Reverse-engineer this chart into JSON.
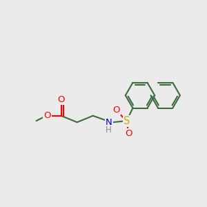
{
  "background_color": "#ebebeb",
  "bond_color": "#3d6b3d",
  "bond_width": 1.5,
  "atom_colors": {
    "O": "#ff0000",
    "N": "#0000cc",
    "S": "#ccaa00",
    "H": "#888888"
  },
  "font_size": 8.5,
  "figsize": [
    3.0,
    3.0
  ],
  "dpi": 100
}
